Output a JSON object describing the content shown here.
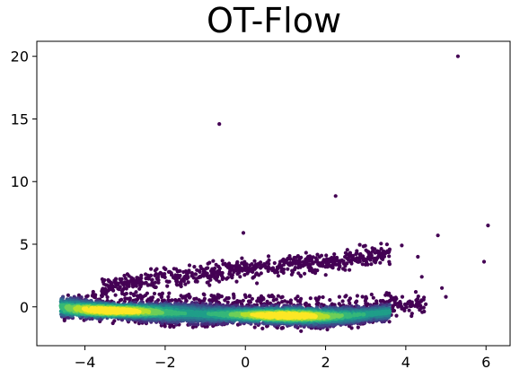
{
  "chart_data": {
    "type": "scatter",
    "title": "OT-Flow",
    "xlabel": "",
    "ylabel": "",
    "xlim": [
      -5.2,
      6.6
    ],
    "ylim": [
      -3.1,
      21.2
    ],
    "x_ticks": [
      -4,
      -2,
      0,
      2,
      4,
      6
    ],
    "x_tick_labels": [
      "−4",
      "−2",
      "0",
      "2",
      "4",
      "6"
    ],
    "y_ticks": [
      0,
      5,
      10,
      15,
      20
    ],
    "y_tick_labels": [
      "0",
      "5",
      "10",
      "15",
      "20"
    ],
    "grid": false,
    "legend": "none",
    "colormap": "viridis",
    "density_colors": [
      "#440154",
      "#482878",
      "#3e4989",
      "#31688e",
      "#26828e",
      "#1f9e89",
      "#35b779",
      "#6ece58",
      "#b5de2b",
      "#fde725"
    ],
    "main_band": {
      "description_points": [
        [
          -4.6,
          0.1
        ],
        [
          -3.4,
          -0.3
        ],
        [
          -2.0,
          -0.5
        ],
        [
          0.0,
          -0.6
        ],
        [
          1.0,
          -0.7
        ],
        [
          2.0,
          -0.8
        ],
        [
          3.0,
          -0.6
        ],
        [
          3.6,
          -0.4
        ]
      ],
      "densest_regions": [
        [
          -3.4,
          -0.3
        ],
        [
          1.0,
          -0.7
        ]
      ]
    },
    "upper_band": {
      "description_points": [
        [
          -3.6,
          1.5
        ],
        [
          -2.0,
          2.4
        ],
        [
          0.0,
          3.0
        ],
        [
          2.0,
          3.5
        ],
        [
          3.6,
          4.3
        ]
      ]
    },
    "outliers": [
      [
        5.3,
        20.0
      ],
      [
        -0.65,
        14.6
      ],
      [
        2.25,
        8.85
      ],
      [
        6.05,
        6.5
      ],
      [
        -0.05,
        5.9
      ],
      [
        4.8,
        5.7
      ],
      [
        5.95,
        3.6
      ],
      [
        4.4,
        2.4
      ],
      [
        4.9,
        1.5
      ],
      [
        5.0,
        0.8
      ],
      [
        4.3,
        4.0
      ],
      [
        3.9,
        4.9
      ]
    ]
  }
}
